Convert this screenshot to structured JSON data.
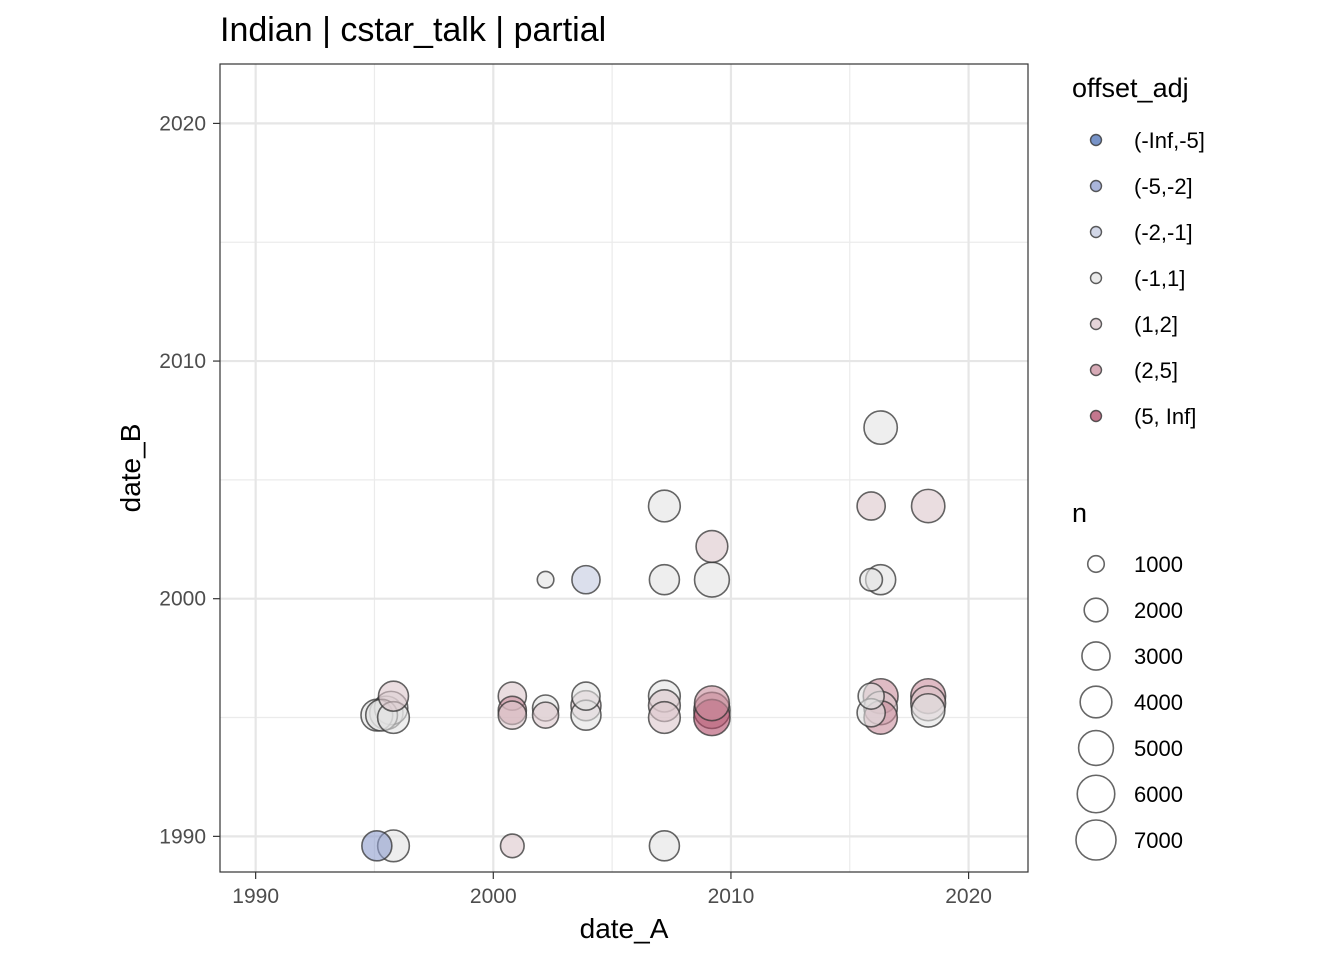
{
  "chart_data": {
    "type": "scatter",
    "title": "Indian | cstar_talk | partial",
    "xlabel": "date_A",
    "ylabel": "date_B",
    "xlim": [
      1988.5,
      2022.5
    ],
    "ylim": [
      1988.5,
      2022.5
    ],
    "x_ticks": [
      1990,
      2000,
      2010,
      2020
    ],
    "y_ticks": [
      1990,
      2000,
      2010,
      2020
    ],
    "x_tick_labels": [
      "1990",
      "2000",
      "2010",
      "2020"
    ],
    "y_tick_labels": [
      "1990",
      "2000",
      "2010",
      "2020"
    ],
    "grid": true,
    "legend_position": "right",
    "color_legend": {
      "title": "offset_adj",
      "categories": [
        {
          "label": "(-Inf,-5]",
          "color": "#4a6fb5"
        },
        {
          "label": "(-5,-2]",
          "color": "#8d9ccd"
        },
        {
          "label": "(-2,-1]",
          "color": "#c3cadf"
        },
        {
          "label": "(-1,1]",
          "color": "#e3e3e3"
        },
        {
          "label": "(1,2]",
          "color": "#dcc6cc"
        },
        {
          "label": "(2,5]",
          "color": "#c98e9d"
        },
        {
          "label": "(5, Inf]",
          "color": "#b04a68"
        }
      ]
    },
    "size_legend": {
      "title": "n",
      "breaks": [
        1000,
        2000,
        3000,
        4000,
        5000,
        6000,
        7000
      ],
      "labels": [
        "1000",
        "2000",
        "3000",
        "4000",
        "5000",
        "6000",
        "7000"
      ]
    },
    "points": [
      {
        "x": 1995.1,
        "y": 1995.1,
        "n": 4000,
        "offset": "(-1,1]"
      },
      {
        "x": 1995.3,
        "y": 1995.1,
        "n": 4000,
        "offset": "(-1,1]"
      },
      {
        "x": 1995.5,
        "y": 1995.2,
        "n": 4500,
        "offset": "(-1,1]"
      },
      {
        "x": 1995.7,
        "y": 1995.4,
        "n": 4500,
        "offset": "(-1,1]"
      },
      {
        "x": 1995.8,
        "y": 1995.9,
        "n": 3500,
        "offset": "(1,2]"
      },
      {
        "x": 1995.8,
        "y": 1995.0,
        "n": 4000,
        "offset": "(-1,1]"
      },
      {
        "x": 1995.1,
        "y": 1989.6,
        "n": 3500,
        "offset": "(-5,-2]"
      },
      {
        "x": 1995.8,
        "y": 1989.6,
        "n": 4000,
        "offset": "(-1,1]"
      },
      {
        "x": 2000.8,
        "y": 1995.9,
        "n": 3000,
        "offset": "(1,2]"
      },
      {
        "x": 2000.8,
        "y": 1995.3,
        "n": 3000,
        "offset": "(2,5]"
      },
      {
        "x": 2000.8,
        "y": 1995.1,
        "n": 3000,
        "offset": "(1,2]"
      },
      {
        "x": 2000.8,
        "y": 1989.6,
        "n": 2000,
        "offset": "(1,2]"
      },
      {
        "x": 2002.2,
        "y": 2000.8,
        "n": 1000,
        "offset": "(-1,1]"
      },
      {
        "x": 2002.2,
        "y": 1995.4,
        "n": 2500,
        "offset": "(-1,1]"
      },
      {
        "x": 2002.2,
        "y": 1995.1,
        "n": 2500,
        "offset": "(1,2]"
      },
      {
        "x": 2003.9,
        "y": 2000.8,
        "n": 3000,
        "offset": "(-2,-1]"
      },
      {
        "x": 2003.9,
        "y": 1995.9,
        "n": 3000,
        "offset": "(-1,1]"
      },
      {
        "x": 2003.9,
        "y": 1995.5,
        "n": 3500,
        "offset": "(1,2]"
      },
      {
        "x": 2003.9,
        "y": 1995.1,
        "n": 3500,
        "offset": "(-1,1]"
      },
      {
        "x": 2007.2,
        "y": 2003.9,
        "n": 4000,
        "offset": "(-1,1]"
      },
      {
        "x": 2007.2,
        "y": 2000.8,
        "n": 3500,
        "offset": "(-1,1]"
      },
      {
        "x": 2007.2,
        "y": 1995.9,
        "n": 4000,
        "offset": "(-1,1]"
      },
      {
        "x": 2007.2,
        "y": 1995.5,
        "n": 4000,
        "offset": "(1,2]"
      },
      {
        "x": 2007.2,
        "y": 1995.0,
        "n": 4000,
        "offset": "(1,2]"
      },
      {
        "x": 2007.2,
        "y": 1989.6,
        "n": 3500,
        "offset": "(-1,1]"
      },
      {
        "x": 2009.2,
        "y": 2002.2,
        "n": 4000,
        "offset": "(1,2]"
      },
      {
        "x": 2009.2,
        "y": 2000.8,
        "n": 5000,
        "offset": "(-1,1]"
      },
      {
        "x": 2009.2,
        "y": 1995.6,
        "n": 5000,
        "offset": "(2,5]"
      },
      {
        "x": 2009.2,
        "y": 1995.3,
        "n": 5500,
        "offset": "(2,5]"
      },
      {
        "x": 2009.2,
        "y": 1995.0,
        "n": 5500,
        "offset": "(5, Inf]"
      },
      {
        "x": 2016.3,
        "y": 2007.2,
        "n": 4500,
        "offset": "(-1,1]"
      },
      {
        "x": 2015.9,
        "y": 2003.9,
        "n": 3000,
        "offset": "(1,2]"
      },
      {
        "x": 2018.3,
        "y": 2003.9,
        "n": 4500,
        "offset": "(1,2]"
      },
      {
        "x": 2016.3,
        "y": 2000.8,
        "n": 3500,
        "offset": "(-1,1]"
      },
      {
        "x": 2015.9,
        "y": 2000.8,
        "n": 1800,
        "offset": "(-1,1]"
      },
      {
        "x": 2016.3,
        "y": 1995.9,
        "n": 5000,
        "offset": "(2,5]"
      },
      {
        "x": 2015.9,
        "y": 1995.9,
        "n": 2500,
        "offset": "(-1,1]"
      },
      {
        "x": 2016.3,
        "y": 1995.4,
        "n": 4500,
        "offset": "(1,2]"
      },
      {
        "x": 2016.3,
        "y": 1995.0,
        "n": 4500,
        "offset": "(2,5]"
      },
      {
        "x": 2015.9,
        "y": 1995.2,
        "n": 3000,
        "offset": "(-1,1]"
      },
      {
        "x": 2018.3,
        "y": 1995.9,
        "n": 5000,
        "offset": "(2,5]"
      },
      {
        "x": 2018.3,
        "y": 1995.6,
        "n": 5000,
        "offset": "(1,2]"
      },
      {
        "x": 2018.3,
        "y": 1995.3,
        "n": 4500,
        "offset": "(-1,1]"
      }
    ]
  }
}
